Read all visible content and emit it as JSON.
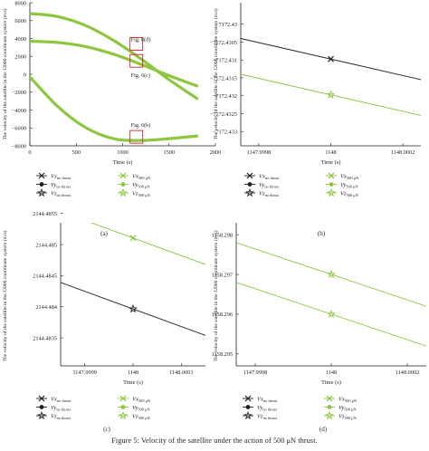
{
  "caption": "Figure 5: Velocity of the satellite under the action of 500 μN thrust.",
  "colors": {
    "no_thrust": "#231f20",
    "thrust": "#8dc63f",
    "thrust_light": "#a6d15a",
    "highlight": "#d2232a"
  },
  "chart_data": [
    {
      "panel": "(a)",
      "type": "line",
      "xlabel": "Time (s)",
      "ylabel": "The velocity of the satellite in the J2000 coordinate system (m/s)",
      "xlim": [
        0,
        2000
      ],
      "ylim": [
        -8000,
        8000
      ],
      "xticks": [
        0,
        500,
        1000,
        1500,
        2000
      ],
      "yticks": [
        8000,
        6000,
        4000,
        2000,
        0,
        -2000,
        -4000,
        -6000,
        -8000
      ],
      "xtick_labels": [
        "0",
        "500",
        "1000",
        "1500",
        "2000"
      ],
      "ytick_labels": [
        "8000",
        "6000",
        "4000",
        "2000",
        "0",
        "−2000",
        "−4000",
        "−6000",
        "−8000"
      ],
      "series": [
        {
          "name": "Vx 500 μN",
          "style": "thrust",
          "x": [
            0,
            300,
            600,
            900,
            1200,
            1500,
            1800
          ],
          "y": [
            3700,
            3550,
            3100,
            2250,
            1100,
            -150,
            -1300
          ]
        },
        {
          "name": "Vy 500 μN",
          "style": "thrust",
          "x": [
            0,
            300,
            600,
            900,
            1200,
            1500,
            1800
          ],
          "y": [
            6800,
            6450,
            5450,
            3800,
            1700,
            -600,
            -2700
          ]
        },
        {
          "name": "Vz 500 μN",
          "style": "thrust",
          "x": [
            0,
            300,
            600,
            900,
            1200,
            1500,
            1800
          ],
          "y": [
            -300,
            -3600,
            -5950,
            -7200,
            -7400,
            -7200,
            -6900
          ]
        }
      ],
      "annotations": [
        {
          "text": "Fig. 6(d)",
          "x": 1148,
          "y": 3400
        },
        {
          "text": "Fig. 6(c)",
          "x": 1148,
          "y": 1500
        },
        {
          "text": "Fig. 6(b)",
          "x": 1148,
          "y": -7000
        }
      ],
      "legend": {
        "no_thrust": [
          {
            "label": "Vx",
            "sub": "no thrust",
            "marker": "x"
          },
          {
            "label": "Vy",
            "sub": "no thrust",
            "marker": "dot"
          },
          {
            "label": "Vz",
            "sub": "no thrust",
            "marker": "star"
          }
        ],
        "thrust": [
          {
            "label": "Vx",
            "sub": "500 μN",
            "marker": "x"
          },
          {
            "label": "Vy",
            "sub": "500 μN",
            "marker": "dot"
          },
          {
            "label": "Vz",
            "sub": "500 μN",
            "marker": "star"
          }
        ]
      }
    },
    {
      "panel": "(b)",
      "type": "line",
      "xlabel": "Time (s)",
      "ylabel": "The velocity of the satellite in the J2000 coordinate system (m/s)",
      "xlim": [
        1147.99975,
        1148.00025
      ],
      "ylim": [
        -7172.4334,
        -7172.4294
      ],
      "xticks": [
        1147.9998,
        1148,
        1148.0002
      ],
      "yticks": [
        -7172.43,
        -7172.4305,
        -7172.431,
        -7172.4315,
        -7172.432,
        -7172.4325,
        -7172.433
      ],
      "xtick_labels": [
        "1147.9998",
        "1148",
        "1148.0002"
      ],
      "ytick_labels": [
        "−7172.43",
        "−7172.4305",
        "−7172.431",
        "−7172.4315",
        "−7172.432",
        "−7172.4325",
        "−7172.433"
      ],
      "series": [
        {
          "name": "Vz no thrust",
          "style": "no_thrust",
          "marker": "x",
          "x": [
            1147.99975,
            1148.00025
          ],
          "y": [
            -7172.4304,
            -7172.43155
          ]
        },
        {
          "name": "Vz 500 μN",
          "style": "thrust",
          "marker": "star",
          "x": [
            1147.99975,
            1148.00025
          ],
          "y": [
            -7172.4314,
            -7172.43255
          ]
        }
      ],
      "legend": {
        "no_thrust": [
          {
            "label": "Vx",
            "sub": "no thrust",
            "marker": "x"
          },
          {
            "label": "Vy",
            "sub": "no thrust",
            "marker": "dot"
          },
          {
            "label": "Vz",
            "sub": "no thrust",
            "marker": "star"
          }
        ],
        "thrust": [
          {
            "label": "Vx",
            "sub": "500 μN",
            "marker": "x"
          },
          {
            "label": "Vy",
            "sub": "500 μN",
            "marker": "dot"
          },
          {
            "label": "Vz",
            "sub": "500 μN",
            "marker": "star"
          }
        ]
      }
    },
    {
      "panel": "(c)",
      "type": "line",
      "xlabel": "Time (s)",
      "ylabel": "The velocity of the satellite in the J2000 coordinate system (m/s)",
      "xlim": [
        1147.99985,
        1148.00015
      ],
      "ylim": [
        2144.48305,
        2144.48535
      ],
      "xticks": [
        1147.9999,
        1148,
        1148.0001
      ],
      "yticks": [
        2144.4855,
        2144.485,
        2144.4845,
        2144.484,
        2144.4835
      ],
      "xtick_labels": [
        "1147.9999",
        "1148",
        "1148.0001"
      ],
      "ytick_labels": [
        "2144.4855",
        "2144.485",
        "2144.4845",
        "2144.484",
        "2144.4835"
      ],
      "series": [
        {
          "name": "Vy 500 μN",
          "style": "thrust",
          "marker": "x",
          "x": [
            1147.99985,
            1148.00015
          ],
          "y": [
            2144.48553,
            2144.48468
          ]
        },
        {
          "name": "Vy no thrust",
          "style": "no_thrust",
          "marker": "star",
          "x": [
            1147.99985,
            1148.00015
          ],
          "y": [
            2144.48439,
            2144.48354
          ]
        }
      ],
      "legend": {
        "no_thrust": [
          {
            "label": "Vx",
            "sub": "no thrust",
            "marker": "x"
          },
          {
            "label": "Vy",
            "sub": "no thrust",
            "marker": "dot"
          },
          {
            "label": "Vz",
            "sub": "no thrust",
            "marker": "star"
          }
        ],
        "thrust": [
          {
            "label": "Vx",
            "sub": "500 μN",
            "marker": "x"
          },
          {
            "label": "Vy",
            "sub": "500 μN",
            "marker": "dot"
          },
          {
            "label": "Vz",
            "sub": "500 μN",
            "marker": "star"
          }
        ]
      }
    },
    {
      "panel": "(d)",
      "type": "line",
      "xlabel": "Time (s)",
      "ylabel": "The velocity of the satellite in the J2000 coordinate system (m/s)",
      "xlim": [
        1147.99975,
        1148.00025
      ],
      "ylim": [
        1158.2947,
        1158.2983
      ],
      "xticks": [
        1147.9998,
        1148,
        1148.0002
      ],
      "yticks": [
        1158.298,
        1158.297,
        1158.296,
        1158.295
      ],
      "xtick_labels": [
        "1147.9998",
        "1148",
        "1148.0002"
      ],
      "ytick_labels": [
        "1158.298",
        "1158.297",
        "1158.296",
        "1158.295"
      ],
      "series": [
        {
          "name": "Vx 500 μN",
          "style": "thrust",
          "marker": "star",
          "x": [
            1147.99975,
            1148.00025
          ],
          "y": [
            1158.2978,
            1158.2962
          ]
        },
        {
          "name": "Vx no thrust",
          "style": "thrust",
          "marker": "star",
          "x": [
            1147.99975,
            1148.00025
          ],
          "y": [
            1158.2968,
            1158.2952
          ]
        }
      ],
      "legend": {
        "no_thrust": [
          {
            "label": "Vx",
            "sub": "no thrust",
            "marker": "x"
          },
          {
            "label": "Vy",
            "sub": "no thrust",
            "marker": "dot"
          },
          {
            "label": "Vz",
            "sub": "no thrust",
            "marker": "star"
          }
        ],
        "thrust": [
          {
            "label": "Vx",
            "sub": "500 μN",
            "marker": "x"
          },
          {
            "label": "Vy",
            "sub": "500 μN",
            "marker": "dot"
          },
          {
            "label": "Vz",
            "sub": "500 μN",
            "marker": "star"
          }
        ]
      }
    }
  ]
}
